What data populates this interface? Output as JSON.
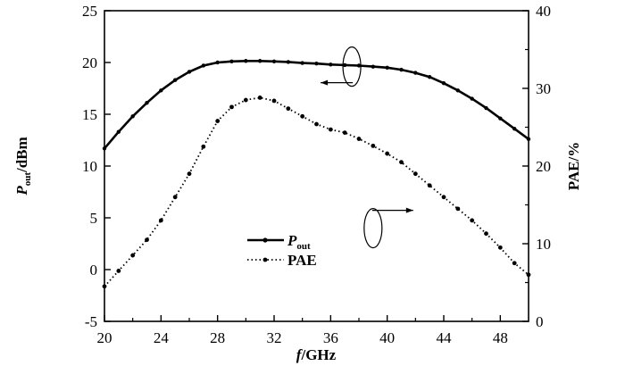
{
  "chart_data": {
    "type": "line",
    "x": [
      20,
      21,
      22,
      23,
      24,
      25,
      26,
      27,
      28,
      29,
      30,
      31,
      32,
      33,
      34,
      35,
      36,
      37,
      38,
      39,
      40,
      41,
      42,
      43,
      44,
      45,
      46,
      47,
      48,
      49,
      50
    ],
    "xlim": [
      20,
      50
    ],
    "x_ticks": [
      "20",
      "24",
      "28",
      "32",
      "36",
      "40",
      "44",
      "48"
    ],
    "xlabel": {
      "italic": "f",
      "rest": "/GHz"
    },
    "y_left": {
      "lim": [
        -5,
        25
      ],
      "ticks": [
        "-5",
        "0",
        "5",
        "10",
        "15",
        "20",
        "25"
      ],
      "label": {
        "main": "P",
        "sub": "out",
        "rest": "/dBm"
      }
    },
    "y_right": {
      "lim": [
        0,
        40
      ],
      "ticks": [
        "0",
        "10",
        "20",
        "30",
        "40"
      ],
      "label": "PAE/%"
    },
    "series": [
      {
        "name_main": "P",
        "name_sub": "out",
        "axis": "left",
        "style": "solid",
        "values": [
          11.7,
          13.3,
          14.8,
          16.1,
          17.3,
          18.3,
          19.1,
          19.7,
          20.0,
          20.1,
          20.15,
          20.15,
          20.1,
          20.05,
          19.95,
          19.9,
          19.8,
          19.75,
          19.7,
          19.6,
          19.5,
          19.3,
          19.0,
          18.6,
          18.0,
          17.3,
          16.5,
          15.6,
          14.6,
          13.6,
          12.6
        ]
      },
      {
        "name": "PAE",
        "axis": "right",
        "style": "dotted",
        "values": [
          4.5,
          6.5,
          8.5,
          10.5,
          13.0,
          16.0,
          19.0,
          22.5,
          25.8,
          27.6,
          28.5,
          28.8,
          28.4,
          27.4,
          26.4,
          25.4,
          24.7,
          24.3,
          23.5,
          22.6,
          21.6,
          20.5,
          19.0,
          17.5,
          16.0,
          14.5,
          13.0,
          11.3,
          9.5,
          7.5,
          6.0
        ]
      }
    ],
    "annotations": [
      {
        "target": "Pout",
        "arrow_direction": "left",
        "at": [
          37.5,
          19.6
        ]
      },
      {
        "target": "PAE",
        "arrow_direction": "right",
        "at": [
          39.0,
          12.0
        ]
      }
    ],
    "legend_position": "center-left",
    "grid": false
  }
}
